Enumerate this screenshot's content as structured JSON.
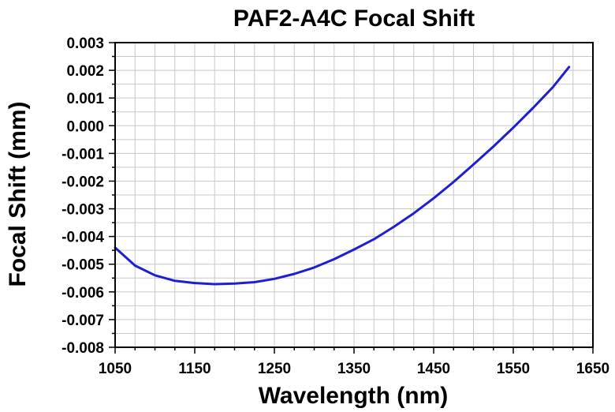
{
  "chart_data": {
    "type": "line",
    "title": "PAF2-A4C Focal Shift",
    "xlabel": "Wavelength (nm)",
    "ylabel": "Focal Shift (mm)",
    "xlim": [
      1050,
      1650
    ],
    "ylim": [
      -0.008,
      0.003
    ],
    "x_ticks": [
      "1050",
      "1150",
      "1250",
      "1350",
      "1450",
      "1550",
      "1650"
    ],
    "y_ticks": [
      "0.003",
      "0.002",
      "0.001",
      "0.000",
      "-0.001",
      "-0.002",
      "-0.003",
      "-0.004",
      "-0.005",
      "-0.006",
      "-0.007",
      "-0.008"
    ],
    "grid": true,
    "line_color": "#1f1fd1",
    "series": [
      {
        "x": [
          1050,
          1075,
          1100,
          1125,
          1150,
          1175,
          1200,
          1225,
          1250,
          1275,
          1300,
          1325,
          1350,
          1375,
          1400,
          1425,
          1450,
          1475,
          1500,
          1525,
          1550,
          1575,
          1600,
          1620
        ],
        "y": [
          -0.0044,
          -0.00505,
          -0.0054,
          -0.0056,
          -0.00568,
          -0.00572,
          -0.0057,
          -0.00565,
          -0.00553,
          -0.00535,
          -0.00512,
          -0.00482,
          -0.00447,
          -0.0041,
          -0.00365,
          -0.00316,
          -0.00262,
          -0.00203,
          -0.0014,
          -0.00075,
          -7e-05,
          0.00065,
          0.0014,
          0.00212
        ]
      }
    ]
  }
}
